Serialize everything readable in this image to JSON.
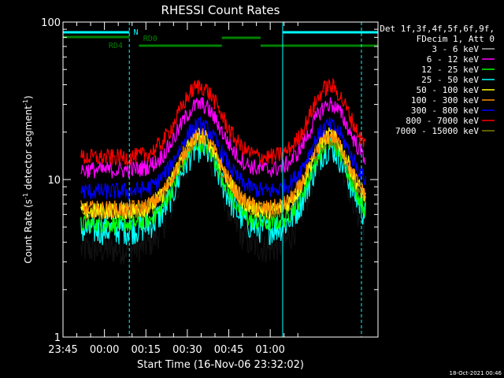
{
  "chart_data": {
    "type": "line",
    "title": "RHESSI Count Rates",
    "xlabel": "Start Time (16-Nov-06 23:32:02)",
    "ylabel_main": "Count Rate (s",
    "ylabel_sup": "-1",
    "ylabel_rest": " detector segment",
    "ylabel_sup2": "-1",
    "ylabel_close": ")",
    "yscale": "log",
    "ylim": [
      1,
      100
    ],
    "yticks": [
      {
        "v": 1,
        "label": "1"
      },
      {
        "v": 10,
        "label": "10"
      },
      {
        "v": 100,
        "label": "100"
      }
    ],
    "x_start_min": -16.5,
    "x_end_min": 75,
    "xticks": [
      {
        "m": 13,
        "label": "23:45"
      },
      {
        "m": 28,
        "label": "00:00"
      },
      {
        "m": 43,
        "label": "00:15"
      },
      {
        "m": 58,
        "label": "00:30"
      },
      {
        "m": 73,
        "label": "00:45"
      },
      {
        "m": 88,
        "label": "01:00"
      }
    ],
    "x_minutes_note": "minutes after 23:32",
    "legend_header": [
      "Det 1f,3f,4f,5f,6f,9f,",
      "FDecim 1, Att 0"
    ],
    "series": [
      {
        "name": "3 - 6 keV",
        "color": "#000000",
        "base": 3.6,
        "peak": 16
      },
      {
        "name": "6 - 12 keV",
        "color": "#ff00ff",
        "base": 11.5,
        "peak": 30
      },
      {
        "name": "12 - 25 keV",
        "color": "#00ff00",
        "base": 5.2,
        "peak": 17
      },
      {
        "name": "25 - 50 keV",
        "color": "#00ffff",
        "base": 4.8,
        "peak": 16
      },
      {
        "name": "50 - 100 keV",
        "color": "#ffff00",
        "base": 6.3,
        "peak": 19
      },
      {
        "name": "100 - 300 keV",
        "color": "#ff8c00",
        "base": 6.5,
        "peak": 19
      },
      {
        "name": "300 - 800 keV",
        "color": "#0000ff",
        "base": 8.4,
        "peak": 22
      },
      {
        "name": "800 - 7000 keV",
        "color": "#ff0000",
        "base": 13.8,
        "peak": 39
      },
      {
        "name": "7000 - 15000 keV",
        "color": "#808000",
        "base": 6.2,
        "peak": 18
      }
    ],
    "annotations": {
      "N_label": "N",
      "RD0_label": "RD0",
      "RD4_label": "RD4"
    }
  },
  "footer_stamp": "18-Oct-2021 00:46"
}
